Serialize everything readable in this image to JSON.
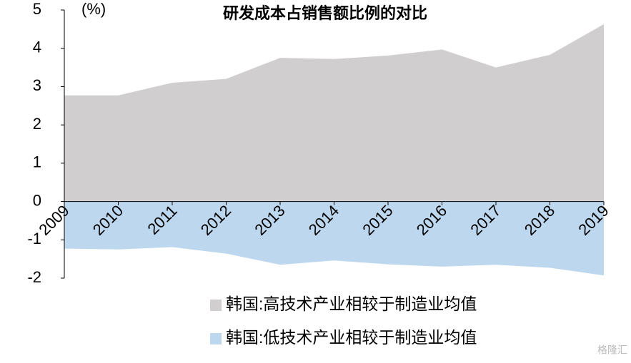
{
  "chart_data": {
    "type": "area",
    "title": "研发成本占销售额比例的对比",
    "y_label": "(%)",
    "categories": [
      "2009",
      "2010",
      "2011",
      "2012",
      "2013",
      "2014",
      "2015",
      "2016",
      "2017",
      "2018",
      "2019"
    ],
    "series": [
      {
        "name": "韩国:高技术产业相较于制造业均值",
        "color": "#d0cece",
        "values": [
          2.77,
          2.77,
          3.1,
          3.2,
          3.75,
          3.72,
          3.81,
          3.97,
          3.5,
          3.83,
          4.63
        ]
      },
      {
        "name": "韩国:低技术产业相较于制造业均值",
        "color": "#bdd7ee",
        "values": [
          -1.23,
          -1.25,
          -1.19,
          -1.36,
          -1.65,
          -1.54,
          -1.64,
          -1.7,
          -1.65,
          -1.73,
          -1.93
        ]
      }
    ],
    "ylim": [
      -2,
      5
    ],
    "yticks": [
      -2,
      -1,
      0,
      1,
      2,
      3,
      4,
      5
    ],
    "grid": false,
    "watermark": "格隆汇"
  }
}
